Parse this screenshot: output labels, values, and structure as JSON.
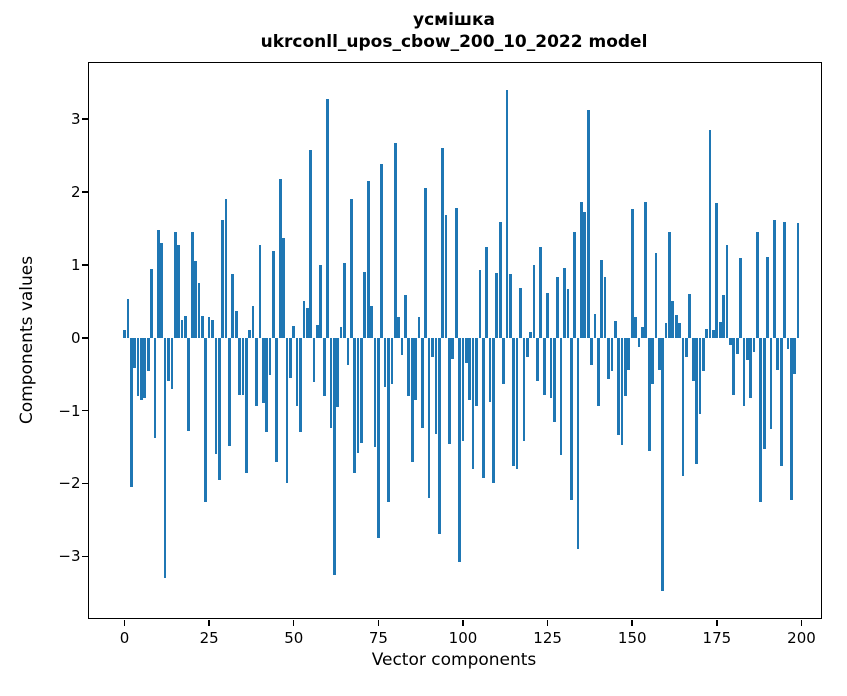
{
  "chart": {
    "title_line1": "усмішка",
    "title_line2": "ukrconll_upos_cbow_200_10_2022 model",
    "xlabel": "Vector components",
    "ylabel": "Components values"
  },
  "chart_data": {
    "type": "bar",
    "title": "усмішка ukrconll_upos_cbow_200_10_2022 model",
    "xlabel": "Vector components",
    "ylabel": "Components values",
    "bar_color": "#1f77b4",
    "axis_color": "#000000",
    "background": "#ffffff",
    "grid": false,
    "legend": "none",
    "bar_rel_width": 0.8,
    "x_ticks": [
      0,
      25,
      50,
      75,
      100,
      125,
      150,
      175,
      200
    ],
    "y_ticks": [
      -3,
      -2,
      -1,
      0,
      1,
      2,
      3
    ],
    "xlim": [
      -10.49,
      205.77
    ],
    "ylim": [
      -3.846,
      3.771
    ],
    "categories_note": "x = vector component index 0..199",
    "values": [
      0.1,
      0.53,
      -2.05,
      -0.42,
      -0.8,
      -0.85,
      -0.83,
      -0.45,
      0.95,
      -1.38,
      1.48,
      1.3,
      -3.3,
      -0.6,
      -0.7,
      1.45,
      1.28,
      0.25,
      0.3,
      -1.28,
      1.45,
      1.05,
      0.75,
      0.3,
      -2.25,
      0.28,
      0.25,
      -1.6,
      -1.95,
      1.62,
      1.91,
      -1.49,
      0.88,
      0.37,
      -0.78,
      -0.78,
      -1.85,
      0.1,
      0.44,
      -0.93,
      1.28,
      -0.9,
      -1.3,
      -0.51,
      1.19,
      -1.7,
      2.18,
      1.37,
      -2.0,
      -0.55,
      0.16,
      -0.93,
      -1.3,
      0.5,
      0.41,
      2.58,
      -0.61,
      0.18,
      1.0,
      -0.8,
      3.28,
      -1.24,
      -3.25,
      -0.95,
      0.15,
      1.02,
      -0.37,
      1.9,
      -1.85,
      -1.58,
      -1.45,
      0.9,
      2.15,
      0.44,
      -1.5,
      -2.75,
      2.39,
      -0.68,
      -2.25,
      -0.63,
      2.67,
      0.28,
      -0.24,
      0.59,
      -0.8,
      -1.7,
      -0.85,
      0.28,
      -1.24,
      2.06,
      -2.2,
      -0.27,
      -1.32,
      -2.7,
      2.6,
      1.69,
      -1.46,
      -0.29,
      1.78,
      -3.08,
      -1.41,
      -0.34,
      -0.85,
      -1.8,
      -0.93,
      0.93,
      -1.93,
      1.25,
      -0.88,
      -2.0,
      0.89,
      1.59,
      -0.63,
      3.4,
      0.88,
      -1.76,
      -1.8,
      0.68,
      -1.41,
      -0.27,
      0.08,
      1.0,
      -0.59,
      1.24,
      -0.78,
      0.62,
      -0.83,
      -1.15,
      0.83,
      -1.61,
      0.96,
      0.67,
      -2.22,
      1.45,
      -2.9,
      1.87,
      1.72,
      3.12,
      -0.37,
      0.33,
      -0.93,
      1.07,
      0.84,
      -0.56,
      -0.46,
      0.23,
      -1.34,
      -1.47,
      -0.8,
      -0.44,
      1.77,
      0.28,
      -0.12,
      0.15,
      1.86,
      -1.56,
      -0.63,
      1.16,
      -0.44,
      -3.48,
      0.2,
      1.45,
      0.5,
      0.31,
      0.2,
      -1.9,
      -0.27,
      0.6,
      -0.6,
      -1.73,
      -1.05,
      -0.46,
      0.12,
      2.85,
      0.11,
      1.85,
      0.22,
      0.59,
      1.28,
      -0.1,
      -0.78,
      -0.22,
      1.1,
      -0.93,
      -0.3,
      -0.82,
      -0.2,
      1.45,
      -2.25,
      -1.52,
      1.11,
      -1.25,
      1.62,
      -0.44,
      -1.76,
      1.59,
      -0.15,
      -2.23,
      -0.5,
      1.58
    ]
  }
}
